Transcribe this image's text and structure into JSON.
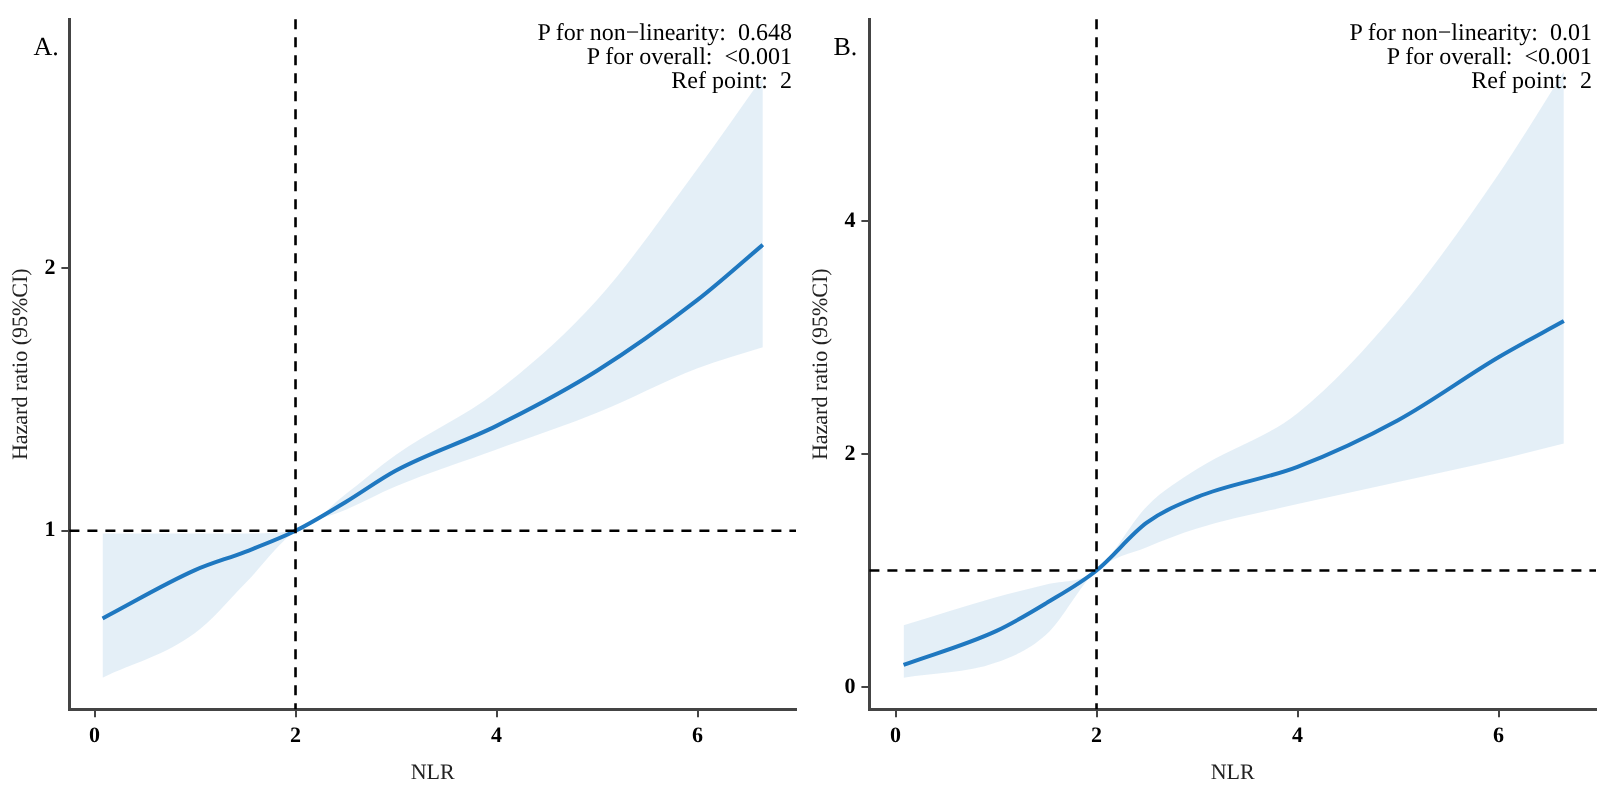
{
  "chart_data": [
    {
      "type": "line",
      "title": "A.",
      "xlabel": "NLR",
      "ylabel": "Hazard ratio (95%CI)",
      "annotations": [
        "P for non−linearity:  0.648",
        "P for overall:  <0.001",
        "Ref point:  2"
      ],
      "xlim": [
        -0.25,
        6.98
      ],
      "ylim": [
        0.32,
        2.95
      ],
      "xticks": [
        0,
        2,
        4,
        6
      ],
      "yticks": [
        1,
        2
      ],
      "grid": false,
      "legend": false,
      "marker": "none",
      "series": [
        {
          "color": "#1f78c1",
          "x": [
            0.08,
            1,
            1.5,
            2,
            2.5,
            3,
            4,
            5,
            6,
            6.65
          ],
          "values": [
            0.666,
            0.85,
            0.92,
            1.0,
            1.11,
            1.23,
            1.4,
            1.61,
            1.88,
            2.09
          ],
          "lower": [
            0.44,
            0.61,
            0.8,
            1.0,
            1.08,
            1.17,
            1.31,
            1.45,
            1.62,
            1.7
          ],
          "upper": [
            0.99,
            0.99,
            0.99,
            1.0,
            1.14,
            1.29,
            1.53,
            1.88,
            2.38,
            2.73
          ]
        }
      ],
      "ref_lines": [
        {
          "axis": "x",
          "value": 2,
          "line_style": "dashed",
          "color": "#000000"
        },
        {
          "axis": "y",
          "value": 1,
          "line_style": "dashed",
          "color": "#000000"
        }
      ]
    },
    {
      "type": "line",
      "title": "B.",
      "xlabel": "NLR",
      "ylabel": "Hazard ratio (95%CI)",
      "annotations": [
        "P for non−linearity:  0.01",
        "P for overall:  <0.001",
        "Ref point:  2"
      ],
      "xlim": [
        -0.26,
        6.97
      ],
      "ylim": [
        -0.19,
        5.73
      ],
      "xticks": [
        0,
        2,
        4,
        6
      ],
      "yticks": [
        0,
        2,
        4
      ],
      "grid": false,
      "legend": false,
      "marker": "none",
      "series": [
        {
          "color": "#1f78c1",
          "x": [
            0.08,
            1,
            1.5,
            2,
            2.5,
            3,
            4,
            5,
            6,
            6.65
          ],
          "values": [
            0.19,
            0.48,
            0.72,
            1.0,
            1.41,
            1.63,
            1.89,
            2.29,
            2.83,
            3.14
          ],
          "lower": [
            0.08,
            0.21,
            0.45,
            1.0,
            1.2,
            1.36,
            1.57,
            1.76,
            1.95,
            2.09
          ],
          "upper": [
            0.53,
            0.77,
            0.88,
            1.0,
            1.55,
            1.87,
            2.35,
            3.23,
            4.4,
            5.28
          ]
        }
      ],
      "ref_lines": [
        {
          "axis": "x",
          "value": 2,
          "line_style": "dashed",
          "color": "#000000"
        },
        {
          "axis": "y",
          "value": 1,
          "line_style": "dashed",
          "color": "#000000"
        }
      ]
    }
  ]
}
